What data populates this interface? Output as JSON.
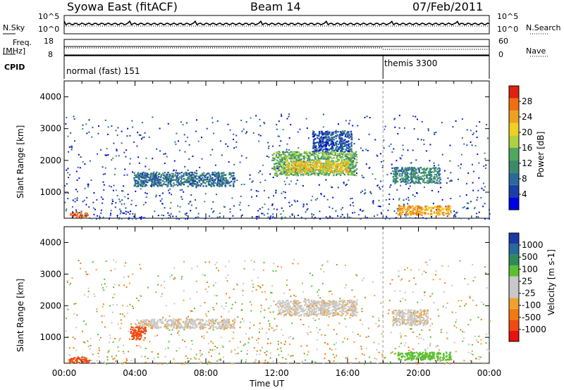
{
  "header": {
    "station": "Syowa East (fitACF)",
    "beam": "Beam 14",
    "date": "07/Feb/2011"
  },
  "top_panels": {
    "nsky_label": "N.Sky",
    "nsky_ticks": [
      "10^5",
      "10^0"
    ],
    "nsearch_label": "N.Search",
    "nsearch_ticks": [
      "10^5",
      "10^0"
    ],
    "freq_label_1": "Freq.",
    "freq_label_2": "[MHz]",
    "freq_ticks": [
      "18",
      "8"
    ],
    "nave_label": "Nave",
    "nave_ticks": [
      "60",
      "0"
    ],
    "cpid_label": "CPID",
    "cpid_modes": [
      {
        "name": "normal (fast) 151",
        "start_hour": 0
      },
      {
        "name": "themis 3300",
        "start_hour": 18
      }
    ]
  },
  "axes": {
    "ylabel": "Slant Range [km]",
    "yticks": [
      "4000",
      "3000",
      "2000",
      "1000"
    ],
    "xlabel": "Time UT",
    "xticks": [
      "00:00",
      "04:00",
      "08:00",
      "12:00",
      "16:00",
      "20:00",
      "00:00"
    ]
  },
  "colorbars": {
    "power": {
      "label": "Power [dB]",
      "ticks": [
        "28",
        "24",
        "20",
        "16",
        "12",
        "8",
        "4"
      ],
      "colors": [
        "#0000e6",
        "#1b3fa8",
        "#2a6a9a",
        "#3d8a6a",
        "#4fa860",
        "#b0d040",
        "#f0d020",
        "#f0a020",
        "#f07010",
        "#e02010"
      ]
    },
    "velocity": {
      "label": "Velocity [m s-1]",
      "ticks": [
        "1000",
        "500",
        "100",
        "25",
        "-25",
        "-100",
        "-500",
        "-1000"
      ],
      "colors": [
        "#1a3aa8",
        "#2a6a98",
        "#2f8a5a",
        "#5ac030",
        "#c8c8c8",
        "#c8c8c8",
        "#f0a030",
        "#f07a10",
        "#f04a10",
        "#e81010"
      ]
    }
  },
  "chart_data": [
    {
      "type": "heatmap",
      "title": "Power [dB]",
      "xlabel": "Time UT",
      "ylabel": "Slant Range [km]",
      "xlim_hours": [
        0,
        24
      ],
      "ylim_km": [
        180,
        4500
      ],
      "scale": [
        0,
        30
      ],
      "regions": [
        {
          "t0": 3.9,
          "t1": 9.6,
          "r0": 1200,
          "r1": 1650,
          "value": 8
        },
        {
          "t0": 11.7,
          "t1": 16.5,
          "r0": 1550,
          "r1": 2300,
          "value": 14
        },
        {
          "t0": 12.5,
          "t1": 16.0,
          "r0": 1650,
          "r1": 2000,
          "value": 20
        },
        {
          "t0": 14.0,
          "t1": 16.2,
          "r0": 2300,
          "r1": 2950,
          "value": 6
        },
        {
          "t0": 0.3,
          "t1": 1.3,
          "r0": 220,
          "r1": 380,
          "value": 26
        },
        {
          "t0": 18.8,
          "t1": 21.8,
          "r0": 300,
          "r1": 600,
          "value": 22
        },
        {
          "t0": 18.5,
          "t1": 21.2,
          "r0": 1300,
          "r1": 1800,
          "value": 10
        }
      ]
    },
    {
      "type": "heatmap",
      "title": "Velocity [m s-1]",
      "xlabel": "Time UT",
      "ylabel": "Slant Range [km]",
      "xlim_hours": [
        0,
        24
      ],
      "ylim_km": [
        180,
        4500
      ],
      "scale": [
        -1000,
        1000
      ],
      "regions": [
        {
          "t0": 4.0,
          "t1": 9.6,
          "r0": 1300,
          "r1": 1600,
          "value": 0
        },
        {
          "t0": 3.7,
          "t1": 4.6,
          "r0": 950,
          "r1": 1350,
          "value": -300
        },
        {
          "t0": 12.0,
          "t1": 16.5,
          "r0": 1700,
          "r1": 2200,
          "value": 0
        },
        {
          "t0": 0.2,
          "t1": 1.4,
          "r0": 220,
          "r1": 400,
          "value": -400
        },
        {
          "t0": 18.8,
          "t1": 21.8,
          "r0": 300,
          "r1": 550,
          "value": 150
        },
        {
          "t0": 18.5,
          "t1": 20.5,
          "r0": 1400,
          "r1": 1900,
          "value": 0
        }
      ]
    }
  ]
}
